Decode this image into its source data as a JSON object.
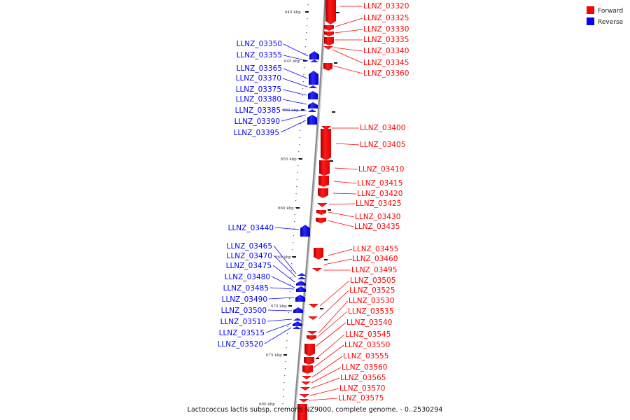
{
  "title": "Lactococcus lactis subsp. cremoris NZ9000, complete genome. - 0..2530294",
  "legend": [
    {
      "label": "Forward",
      "color": "#ff0000"
    },
    {
      "label": "Reverse",
      "color": "#0000ff"
    }
  ],
  "colors": {
    "forward": "#ff0000",
    "reverse": "#0000ff",
    "backbone": "#888888"
  },
  "kbp_ticks": [
    "640 kbp",
    "645 kbp",
    "650 kbp",
    "655 kbp",
    "660 kbp",
    "665 kbp",
    "670 kbp",
    "675 kbp",
    "680 kbp"
  ],
  "forward_genes": [
    {
      "label": "LLNZ_03320"
    },
    {
      "label": "LLNZ_03325"
    },
    {
      "label": "LLNZ_03330"
    },
    {
      "label": "LLNZ_03335"
    },
    {
      "label": "LLNZ_03340"
    },
    {
      "label": "LLNZ_03345"
    },
    {
      "label": "LLNZ_03360"
    },
    {
      "label": "LLNZ_03400"
    },
    {
      "label": "LLNZ_03405"
    },
    {
      "label": "LLNZ_03410"
    },
    {
      "label": "LLNZ_03415"
    },
    {
      "label": "LLNZ_03420"
    },
    {
      "label": "LLNZ_03425"
    },
    {
      "label": "LLNZ_03430"
    },
    {
      "label": "LLNZ_03435"
    },
    {
      "label": "LLNZ_03455"
    },
    {
      "label": "LLNZ_03460"
    },
    {
      "label": "LLNZ_03495"
    },
    {
      "label": "LLNZ_03505"
    },
    {
      "label": "LLNZ_03525"
    },
    {
      "label": "LLNZ_03530"
    },
    {
      "label": "LLNZ_03535"
    },
    {
      "label": "LLNZ_03540"
    },
    {
      "label": "LLNZ_03545"
    },
    {
      "label": "LLNZ_03550"
    },
    {
      "label": "LLNZ_03555"
    },
    {
      "label": "LLNZ_03560"
    },
    {
      "label": "LLNZ_03565"
    },
    {
      "label": "LLNZ_03570"
    },
    {
      "label": "LLNZ_03575"
    }
  ],
  "reverse_genes": [
    {
      "label": "LLNZ_03350"
    },
    {
      "label": "LLNZ_03355"
    },
    {
      "label": "LLNZ_03365"
    },
    {
      "label": "LLNZ_03370"
    },
    {
      "label": "LLNZ_03375"
    },
    {
      "label": "LLNZ_03380"
    },
    {
      "label": "LLNZ_03385"
    },
    {
      "label": "LLNZ_03390"
    },
    {
      "label": "LLNZ_03395"
    },
    {
      "label": "LLNZ_03440"
    },
    {
      "label": "LLNZ_03465"
    },
    {
      "label": "LLNZ_03470"
    },
    {
      "label": "LLNZ_03475"
    },
    {
      "label": "LLNZ_03480"
    },
    {
      "label": "LLNZ_03485"
    },
    {
      "label": "LLNZ_03490"
    },
    {
      "label": "LLNZ_03500"
    },
    {
      "label": "LLNZ_03510"
    },
    {
      "label": "LLNZ_03515"
    },
    {
      "label": "LLNZ_03520"
    }
  ]
}
